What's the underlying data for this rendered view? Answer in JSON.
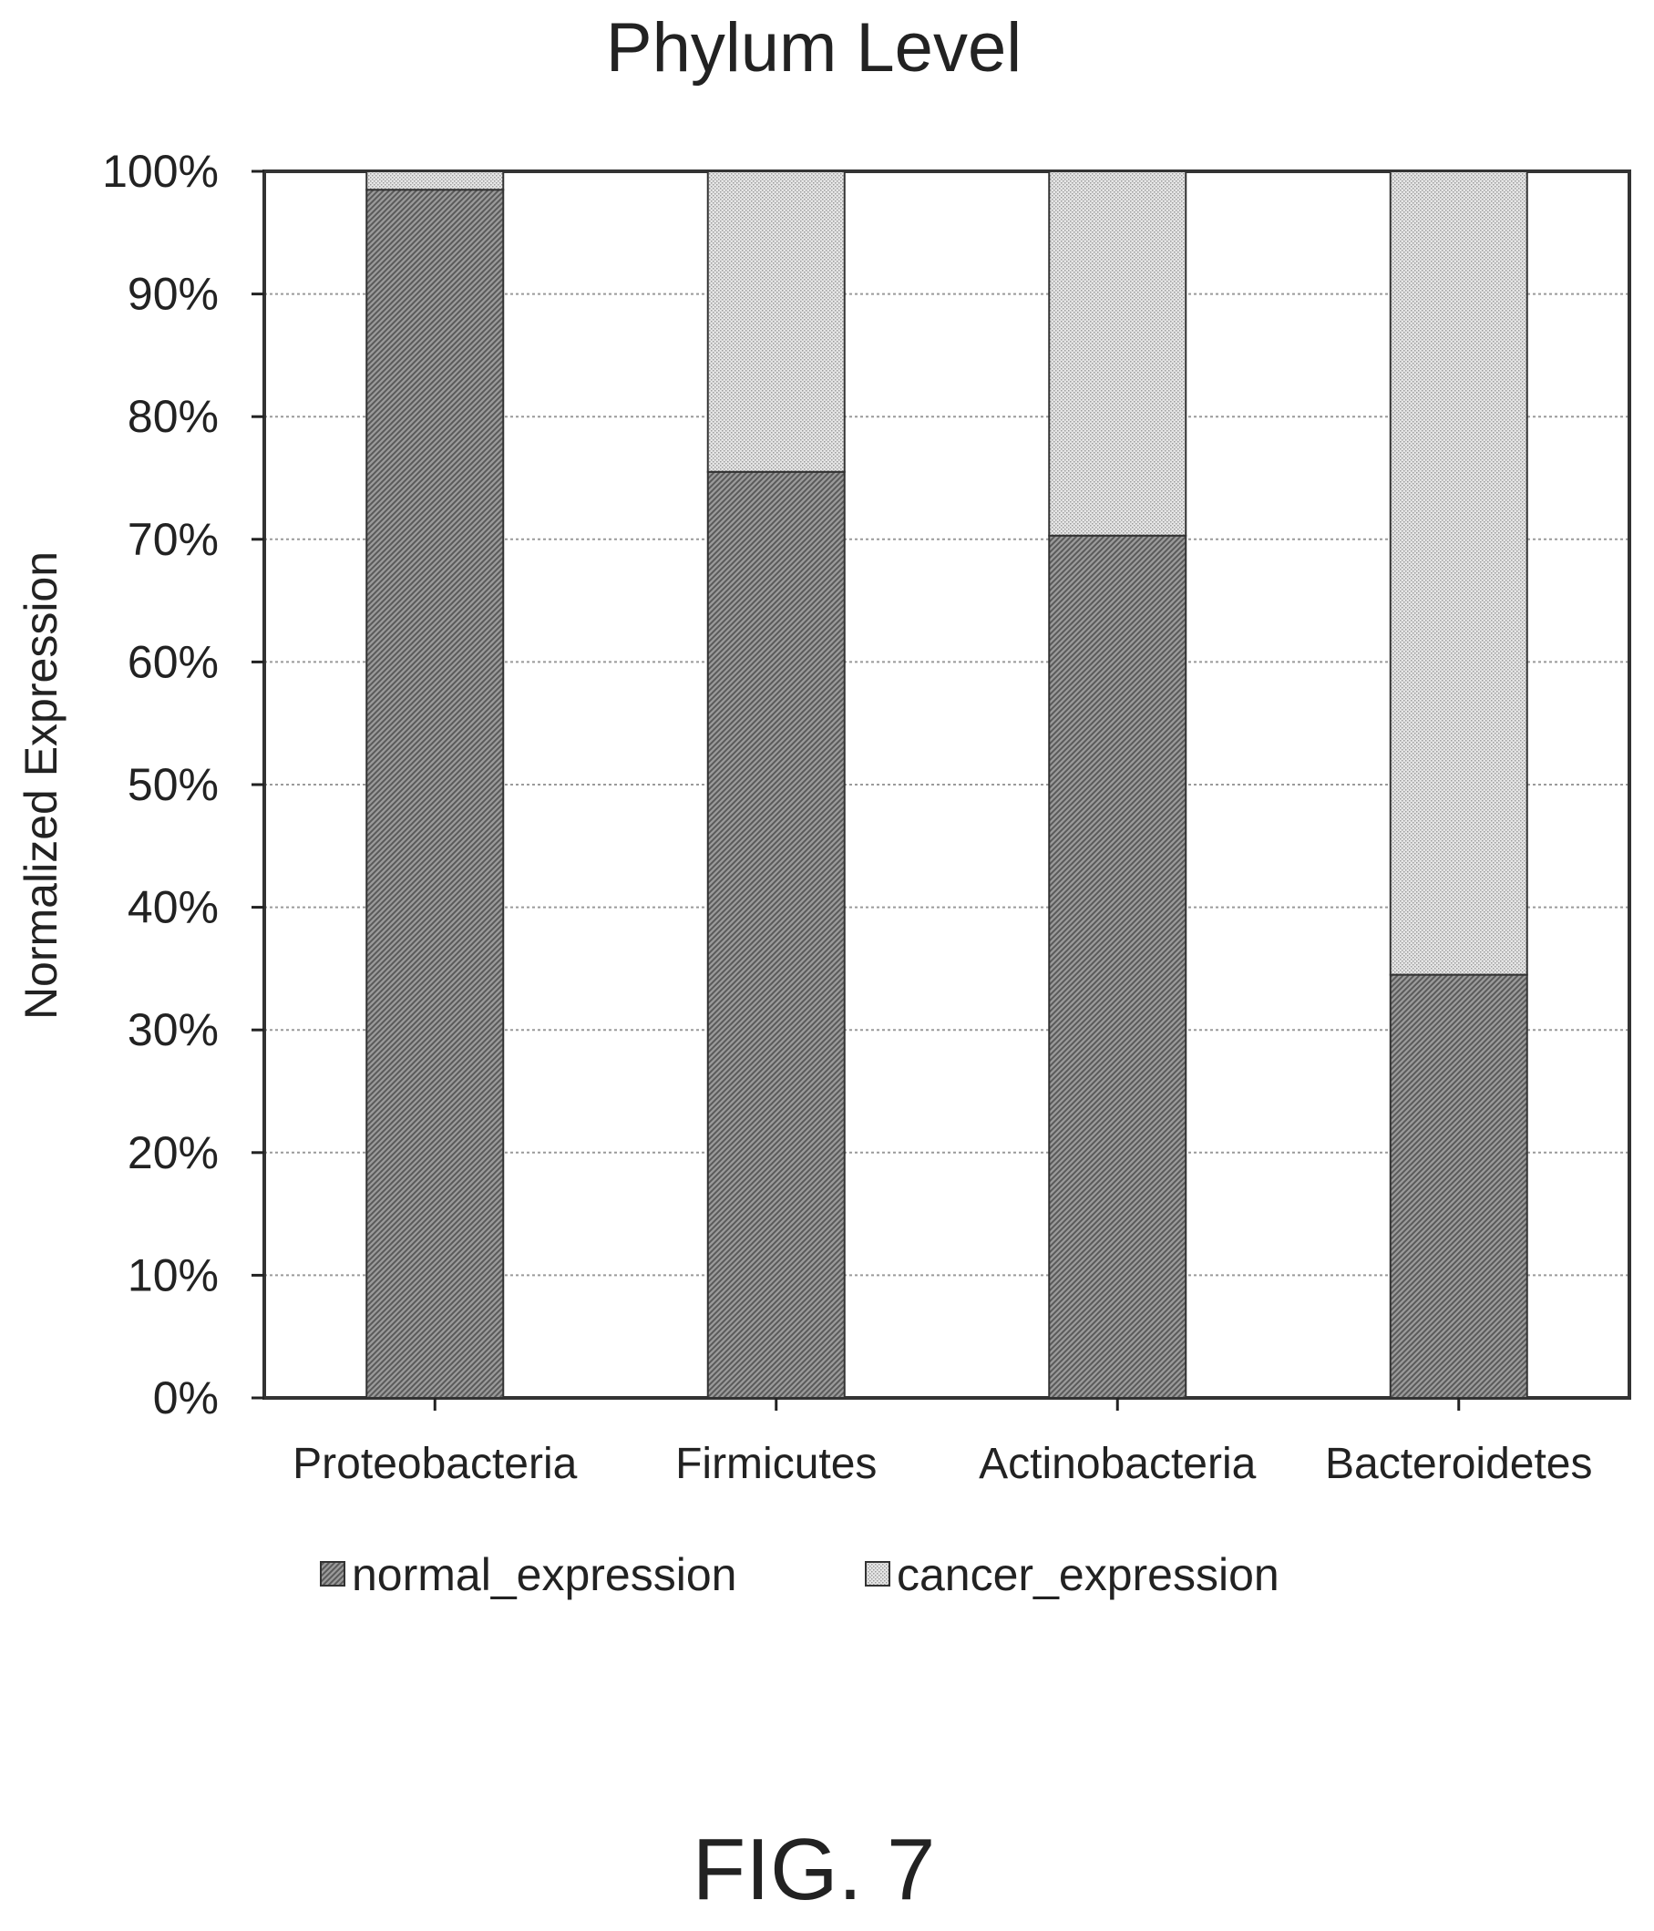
{
  "chart_data": {
    "type": "bar",
    "stacked": true,
    "title": "Phylum Level",
    "xlabel": "",
    "ylabel": "Normalized Expression",
    "ylim": [
      0,
      100
    ],
    "yticks": [
      "0%",
      "10%",
      "20%",
      "30%",
      "40%",
      "50%",
      "60%",
      "70%",
      "80%",
      "90%",
      "100%"
    ],
    "categories": [
      "Proteobacteria",
      "Firmicutes",
      "Actinobacteria",
      "Bacteroidetes"
    ],
    "series": [
      {
        "name": "normal_expression",
        "values": [
          98.5,
          75.5,
          70.3,
          34.5
        ],
        "color": "#8a8a8a"
      },
      {
        "name": "cancer_expression",
        "values": [
          1.5,
          24.5,
          29.7,
          65.5
        ],
        "color": "#d6d6d6"
      }
    ],
    "grid": true,
    "legend_position": "bottom",
    "caption": "FIG. 7"
  }
}
